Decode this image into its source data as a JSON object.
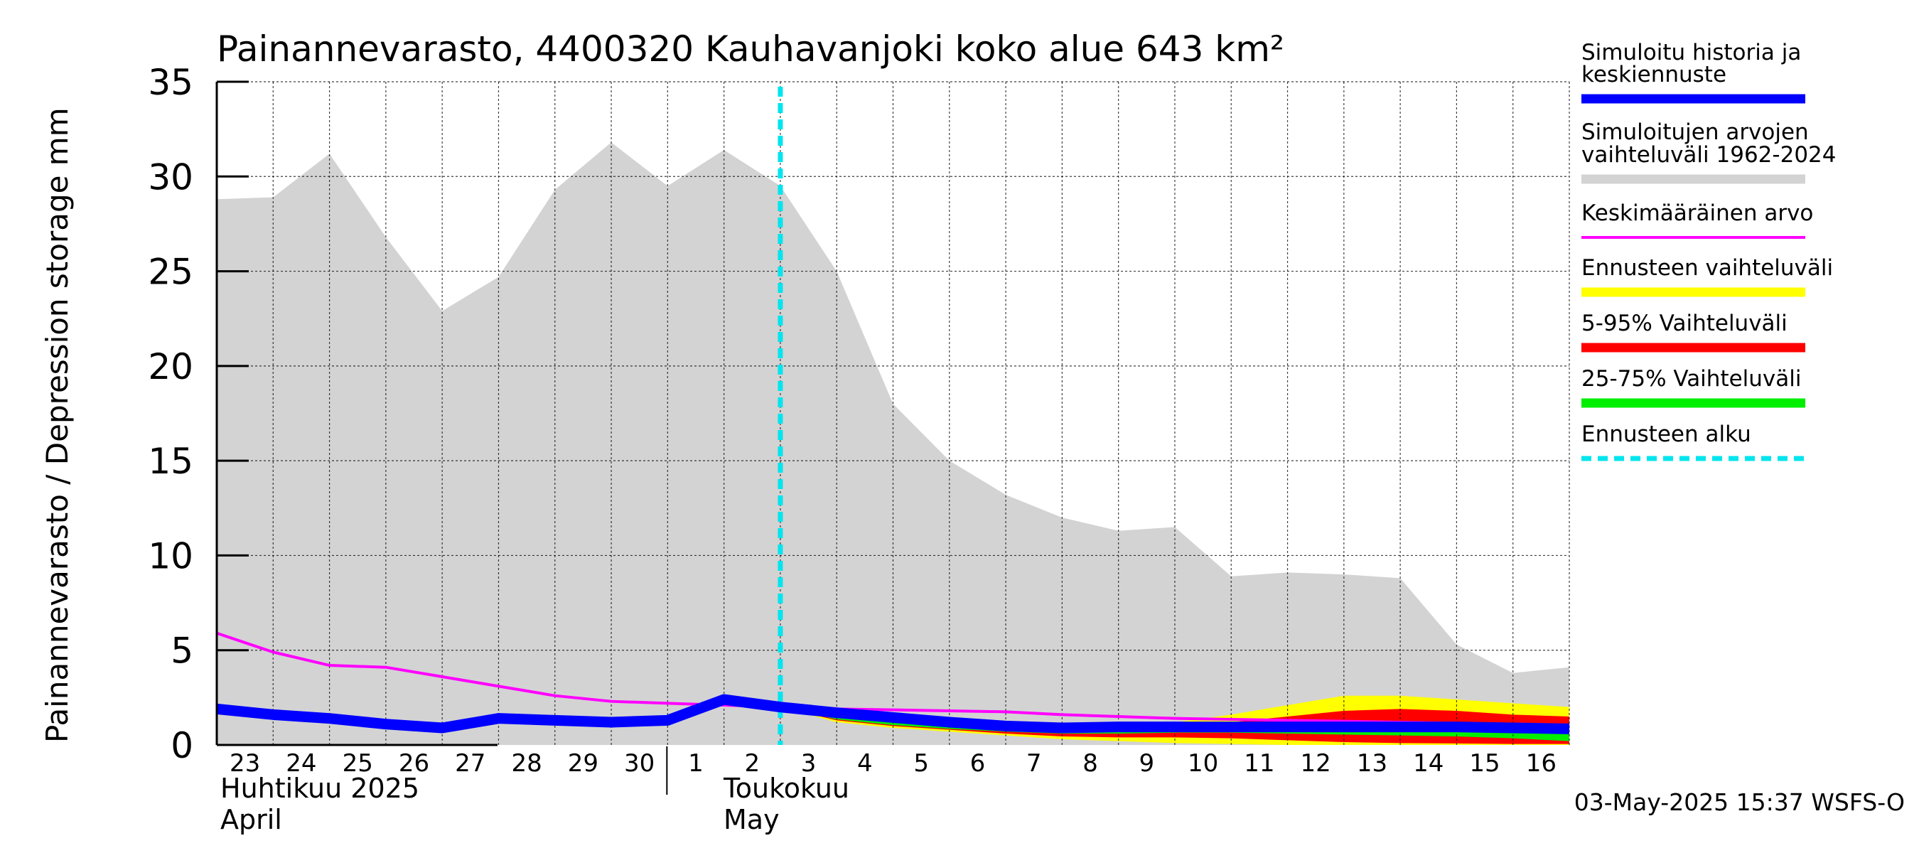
{
  "chart_data": {
    "type": "area",
    "title": "Painannevarasto, 4400320 Kauhavanjoki koko alue 643 km²",
    "ylabel": "Painannevarasto / Depression storage    mm",
    "ylim": [
      0,
      35
    ],
    "yticks": [
      0,
      5,
      10,
      15,
      20,
      25,
      30,
      35
    ],
    "grid": true,
    "legend_placement": "right",
    "x_tick_labels": [
      "23",
      "24",
      "25",
      "26",
      "27",
      "28",
      "29",
      "30",
      "1",
      "2",
      "3",
      "4",
      "5",
      "6",
      "7",
      "8",
      "9",
      "10",
      "11",
      "12",
      "13",
      "14",
      "15",
      "16"
    ],
    "month_labels": [
      {
        "fi": "Huhtikuu  2025",
        "en": "April"
      },
      {
        "fi": "Toukokuu",
        "en": "May"
      }
    ],
    "forecast_start_day_index": 10,
    "x_days": [
      0,
      1,
      2,
      3,
      4,
      5,
      6,
      7,
      8,
      9,
      10,
      11,
      12,
      13,
      14,
      15,
      16,
      17,
      18,
      19,
      20,
      21,
      22,
      23,
      24
    ],
    "series": [
      {
        "name": "Simuloitujen arvojen vaihteluväli 1962-2024",
        "kind": "band",
        "color": "#d3d3d3",
        "x": [
          0,
          1,
          2,
          3,
          4,
          5,
          6,
          7,
          8,
          9,
          10,
          11,
          12,
          13,
          14,
          15,
          16,
          17,
          18,
          19,
          20,
          21,
          22,
          23,
          24
        ],
        "upper": [
          28.8,
          28.9,
          31.2,
          26.8,
          22.9,
          24.7,
          29.3,
          31.8,
          29.5,
          31.4,
          29.5,
          25.0,
          18.0,
          15.0,
          13.2,
          12.0,
          11.3,
          11.5,
          8.9,
          9.1,
          9.0,
          8.8,
          5.3,
          3.8,
          4.1
        ],
        "lower": [
          0,
          0,
          0,
          0,
          0,
          0,
          0,
          0,
          0,
          0,
          0,
          0,
          0,
          0,
          0,
          0,
          0,
          0,
          0,
          0,
          0,
          0,
          0,
          0,
          0
        ]
      },
      {
        "name": "Ennusteen vaihteluväli",
        "kind": "band",
        "color": "#ffff00",
        "x": [
          10,
          11,
          12,
          13,
          14,
          15,
          16,
          17,
          18,
          19,
          20,
          21,
          22,
          23,
          24
        ],
        "upper": [
          2.0,
          1.6,
          1.3,
          1.1,
          1.0,
          0.9,
          1.0,
          1.2,
          1.6,
          2.1,
          2.6,
          2.6,
          2.4,
          2.2,
          2.0
        ],
        "lower": [
          2.0,
          1.2,
          0.9,
          0.7,
          0.5,
          0.3,
          0.2,
          0.1,
          0.05,
          0.0,
          0.0,
          0.0,
          0.0,
          0.0,
          0.0
        ]
      },
      {
        "name": "5-95% Vaihteluväli",
        "kind": "band",
        "color": "#ff0000",
        "x": [
          10,
          11,
          12,
          13,
          14,
          15,
          16,
          17,
          18,
          19,
          20,
          21,
          22,
          23,
          24
        ],
        "upper": [
          2.0,
          1.5,
          1.25,
          1.05,
          0.95,
          0.9,
          0.95,
          1.05,
          1.2,
          1.5,
          1.8,
          1.9,
          1.8,
          1.6,
          1.5
        ],
        "lower": [
          2.0,
          1.3,
          1.0,
          0.8,
          0.6,
          0.45,
          0.4,
          0.4,
          0.35,
          0.25,
          0.15,
          0.1,
          0.08,
          0.05,
          0.05
        ]
      },
      {
        "name": "25-75% Vaihteluväli",
        "kind": "band",
        "color": "#00ee00",
        "x": [
          10,
          11,
          12,
          13,
          14,
          15,
          16,
          17,
          18,
          19,
          20,
          21,
          22,
          23,
          24
        ],
        "upper": [
          2.0,
          1.45,
          1.2,
          1.0,
          0.92,
          0.88,
          0.9,
          0.95,
          1.0,
          1.1,
          1.2,
          1.25,
          1.2,
          1.1,
          1.0
        ],
        "lower": [
          2.0,
          1.35,
          1.05,
          0.85,
          0.7,
          0.6,
          0.6,
          0.65,
          0.65,
          0.6,
          0.55,
          0.5,
          0.45,
          0.35,
          0.2
        ]
      },
      {
        "name": "Keskimääräinen arvo",
        "kind": "line",
        "color": "#ff00ff",
        "x": [
          0,
          1,
          2,
          3,
          4,
          5,
          6,
          7,
          8,
          9,
          10,
          11,
          12,
          13,
          14,
          15,
          16,
          17,
          18,
          19,
          20,
          21,
          22,
          23,
          24
        ],
        "values": [
          5.9,
          4.9,
          4.2,
          4.1,
          3.6,
          3.1,
          2.6,
          2.3,
          2.2,
          2.1,
          2.0,
          1.9,
          1.85,
          1.8,
          1.75,
          1.6,
          1.5,
          1.4,
          1.35,
          1.3,
          1.25,
          1.2,
          1.15,
          1.1,
          1.05
        ]
      },
      {
        "name": "Simuloitu historia ja keskiennuste",
        "kind": "line",
        "color": "#0000ff",
        "x": [
          0,
          1,
          2,
          3,
          4,
          5,
          6,
          7,
          8,
          9,
          10,
          11,
          12,
          13,
          14,
          15,
          16,
          17,
          18,
          19,
          20,
          21,
          22,
          23,
          24
        ],
        "values": [
          1.9,
          1.6,
          1.4,
          1.1,
          0.9,
          1.4,
          1.3,
          1.2,
          1.3,
          2.4,
          2.0,
          1.7,
          1.45,
          1.2,
          1.0,
          0.9,
          0.95,
          0.95,
          0.95,
          0.95,
          0.95,
          0.95,
          0.95,
          0.9,
          0.85
        ]
      }
    ],
    "legend": [
      {
        "label": "Simuloitu historia ja keskiennuste",
        "color": "#0000ff",
        "style": "solid-thick"
      },
      {
        "label": "Simuloitujen arvojen vaihteluväli 1962-2024",
        "color": "#d3d3d3",
        "style": "solid-thick"
      },
      {
        "label": "Keskimääräinen arvo",
        "color": "#ff00ff",
        "style": "solid-thin"
      },
      {
        "label": "Ennusteen vaihteluväli",
        "color": "#ffff00",
        "style": "solid-thick"
      },
      {
        "label": "5-95% Vaihteluväli",
        "color": "#ff0000",
        "style": "solid-thick"
      },
      {
        "label": "25-75% Vaihteluväli",
        "color": "#00ee00",
        "style": "solid-thick"
      },
      {
        "label": "Ennusteen alku",
        "color": "#00e5ee",
        "style": "dashed"
      }
    ],
    "forecast_line_color": "#00e5ee",
    "timestamp": "03-May-2025 15:37 WSFS-O"
  }
}
